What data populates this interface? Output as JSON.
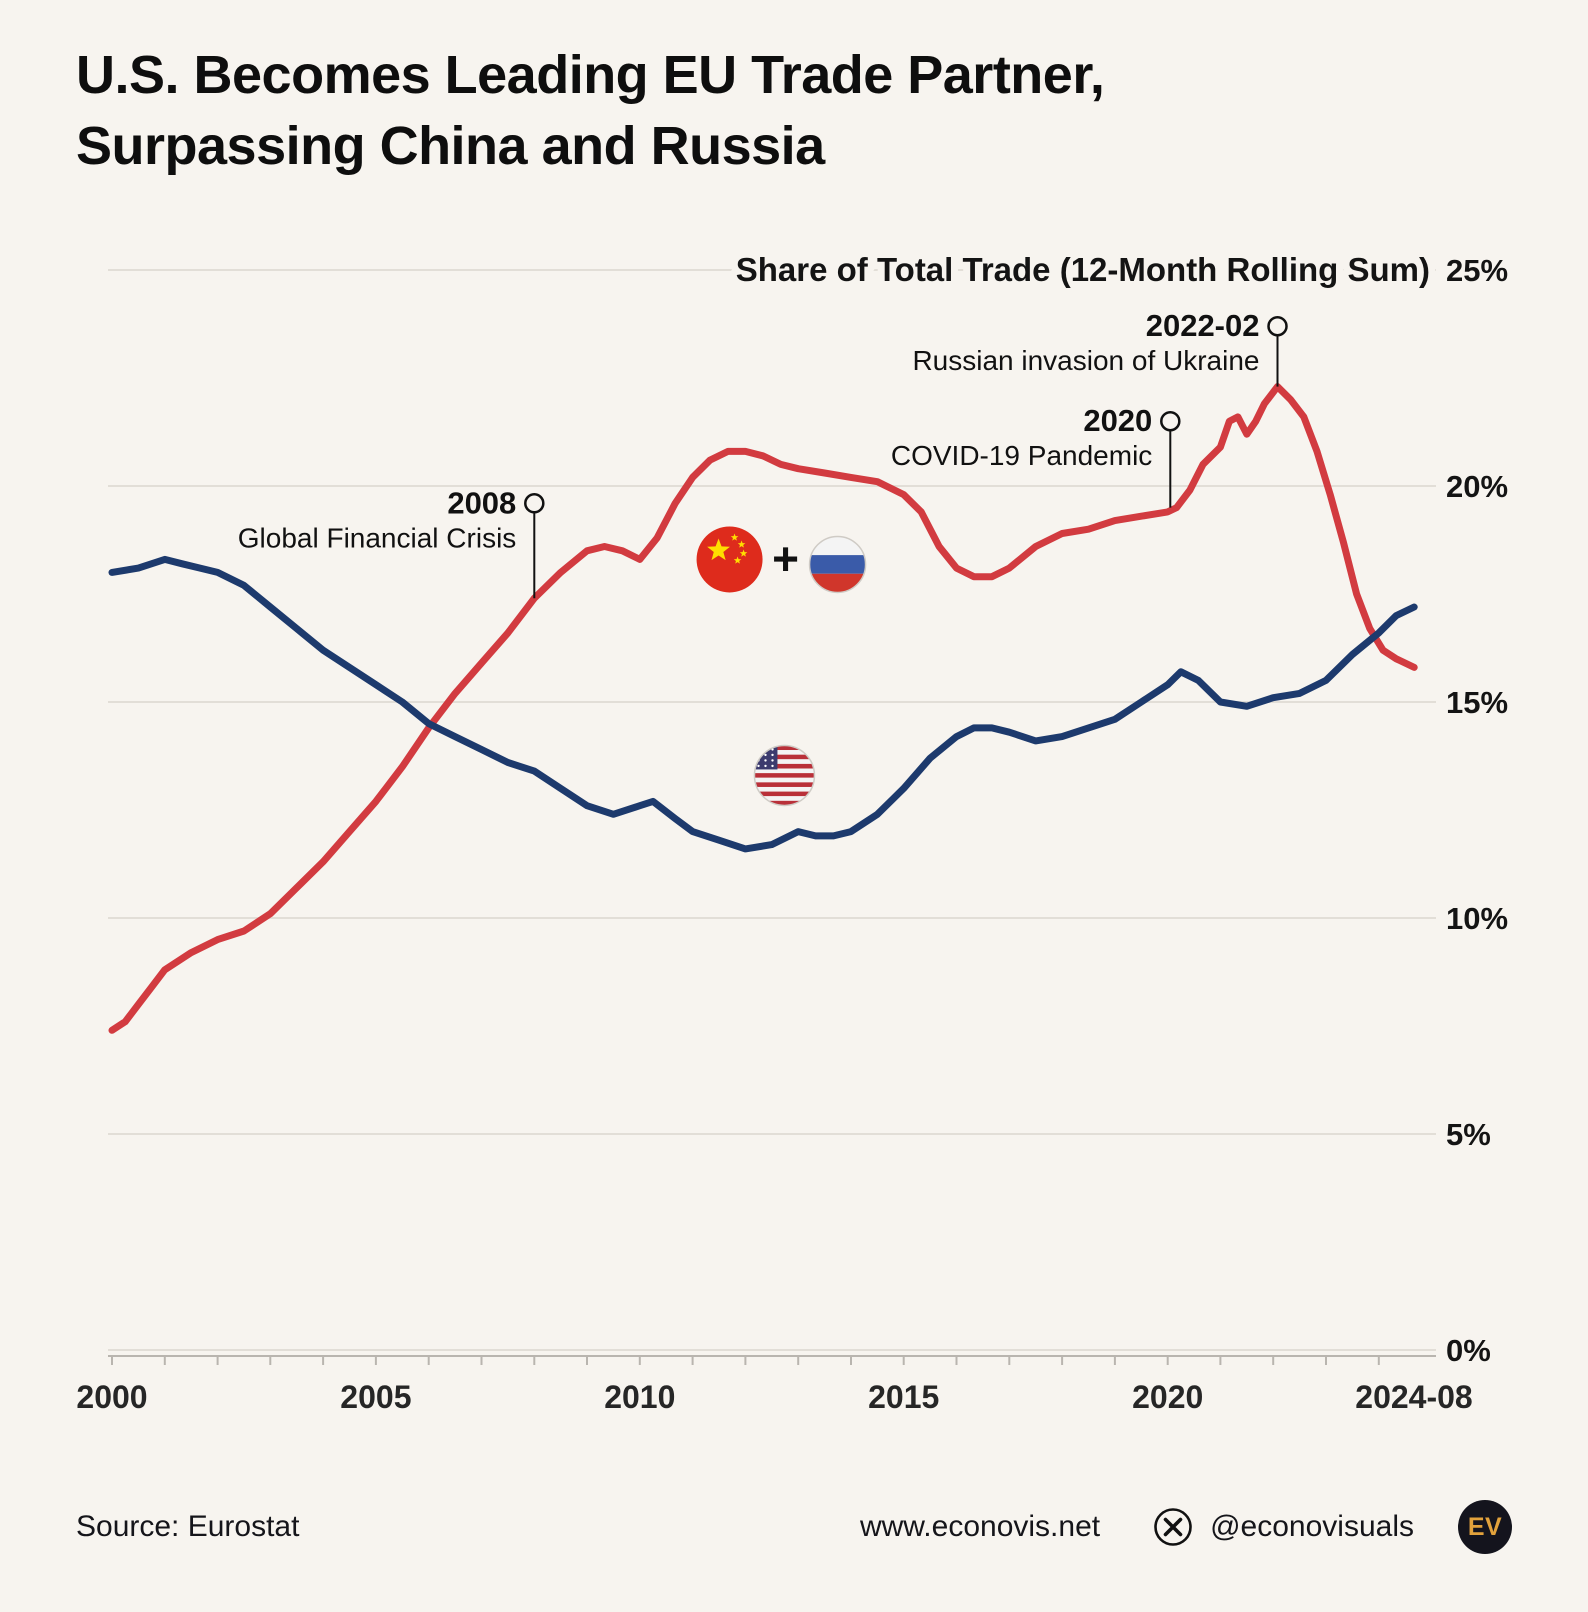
{
  "header": {
    "title_line1": "U.S. Becomes Leading EU Trade Partner,",
    "title_line2": "Surpassing China and Russia"
  },
  "colors": {
    "background": "#f7f4ef",
    "grid": "#e2ded7",
    "axis": "#b9b5af",
    "text": "#141414",
    "red": "#d23b40",
    "navy": "#1d3a6d"
  },
  "chart_data": {
    "type": "line",
    "title": "Share of Total Trade (12-Month Rolling Sum)",
    "x_axis": {
      "range": [
        2000,
        2024.667
      ],
      "tick_years": [
        2000,
        2005,
        2010,
        2015,
        2020,
        2024.667
      ],
      "tick_labels": [
        "2000",
        "2005",
        "2010",
        "2015",
        "2020",
        "2024-08"
      ]
    },
    "y_axis": {
      "range": [
        0,
        25
      ],
      "tick_values": [
        0,
        5,
        10,
        15,
        20,
        25
      ],
      "tick_labels": [
        "0%",
        "5%",
        "10%",
        "15%",
        "20%",
        "25%"
      ]
    },
    "series": [
      {
        "id": "china-russia",
        "name": "China + Russia",
        "color": "#d23b40",
        "points": [
          [
            2000.0,
            7.4
          ],
          [
            2000.25,
            7.6
          ],
          [
            2000.5,
            8.0
          ],
          [
            2000.75,
            8.4
          ],
          [
            2001.0,
            8.8
          ],
          [
            2001.25,
            9.0
          ],
          [
            2001.5,
            9.2
          ],
          [
            2002.0,
            9.5
          ],
          [
            2002.5,
            9.7
          ],
          [
            2003.0,
            10.1
          ],
          [
            2003.5,
            10.7
          ],
          [
            2004.0,
            11.3
          ],
          [
            2004.5,
            12.0
          ],
          [
            2005.0,
            12.7
          ],
          [
            2005.5,
            13.5
          ],
          [
            2006.0,
            14.4
          ],
          [
            2006.5,
            15.2
          ],
          [
            2007.0,
            15.9
          ],
          [
            2007.5,
            16.6
          ],
          [
            2008.0,
            17.4
          ],
          [
            2008.5,
            18.0
          ],
          [
            2009.0,
            18.5
          ],
          [
            2009.33,
            18.6
          ],
          [
            2009.67,
            18.5
          ],
          [
            2010.0,
            18.3
          ],
          [
            2010.33,
            18.8
          ],
          [
            2010.67,
            19.6
          ],
          [
            2011.0,
            20.2
          ],
          [
            2011.33,
            20.6
          ],
          [
            2011.67,
            20.8
          ],
          [
            2012.0,
            20.8
          ],
          [
            2012.33,
            20.7
          ],
          [
            2012.67,
            20.5
          ],
          [
            2013.0,
            20.4
          ],
          [
            2013.5,
            20.3
          ],
          [
            2014.0,
            20.2
          ],
          [
            2014.5,
            20.1
          ],
          [
            2015.0,
            19.8
          ],
          [
            2015.33,
            19.4
          ],
          [
            2015.67,
            18.6
          ],
          [
            2016.0,
            18.1
          ],
          [
            2016.33,
            17.9
          ],
          [
            2016.67,
            17.9
          ],
          [
            2017.0,
            18.1
          ],
          [
            2017.5,
            18.6
          ],
          [
            2018.0,
            18.9
          ],
          [
            2018.5,
            19.0
          ],
          [
            2019.0,
            19.2
          ],
          [
            2019.5,
            19.3
          ],
          [
            2020.0,
            19.4
          ],
          [
            2020.17,
            19.5
          ],
          [
            2020.42,
            19.9
          ],
          [
            2020.67,
            20.5
          ],
          [
            2021.0,
            20.9
          ],
          [
            2021.17,
            21.5
          ],
          [
            2021.33,
            21.6
          ],
          [
            2021.5,
            21.2
          ],
          [
            2021.67,
            21.5
          ],
          [
            2021.83,
            21.9
          ],
          [
            2022.08,
            22.3
          ],
          [
            2022.33,
            22.0
          ],
          [
            2022.58,
            21.6
          ],
          [
            2022.83,
            20.8
          ],
          [
            2023.08,
            19.8
          ],
          [
            2023.33,
            18.7
          ],
          [
            2023.58,
            17.5
          ],
          [
            2023.83,
            16.7
          ],
          [
            2024.08,
            16.2
          ],
          [
            2024.33,
            16.0
          ],
          [
            2024.67,
            15.8
          ]
        ]
      },
      {
        "id": "united-states",
        "name": "United States",
        "color": "#1d3a6d",
        "points": [
          [
            2000.0,
            18.0
          ],
          [
            2000.5,
            18.1
          ],
          [
            2001.0,
            18.3
          ],
          [
            2001.33,
            18.2
          ],
          [
            2001.67,
            18.1
          ],
          [
            2002.0,
            18.0
          ],
          [
            2002.5,
            17.7
          ],
          [
            2003.0,
            17.2
          ],
          [
            2003.5,
            16.7
          ],
          [
            2004.0,
            16.2
          ],
          [
            2004.5,
            15.8
          ],
          [
            2005.0,
            15.4
          ],
          [
            2005.5,
            15.0
          ],
          [
            2006.0,
            14.5
          ],
          [
            2006.5,
            14.2
          ],
          [
            2007.0,
            13.9
          ],
          [
            2007.5,
            13.6
          ],
          [
            2008.0,
            13.4
          ],
          [
            2008.5,
            13.0
          ],
          [
            2009.0,
            12.6
          ],
          [
            2009.5,
            12.4
          ],
          [
            2010.0,
            12.6
          ],
          [
            2010.25,
            12.7
          ],
          [
            2010.67,
            12.3
          ],
          [
            2011.0,
            12.0
          ],
          [
            2011.5,
            11.8
          ],
          [
            2012.0,
            11.6
          ],
          [
            2012.5,
            11.7
          ],
          [
            2013.0,
            12.0
          ],
          [
            2013.33,
            11.9
          ],
          [
            2013.67,
            11.9
          ],
          [
            2014.0,
            12.0
          ],
          [
            2014.5,
            12.4
          ],
          [
            2015.0,
            13.0
          ],
          [
            2015.5,
            13.7
          ],
          [
            2016.0,
            14.2
          ],
          [
            2016.33,
            14.4
          ],
          [
            2016.67,
            14.4
          ],
          [
            2017.0,
            14.3
          ],
          [
            2017.5,
            14.1
          ],
          [
            2018.0,
            14.2
          ],
          [
            2018.5,
            14.4
          ],
          [
            2019.0,
            14.6
          ],
          [
            2019.5,
            15.0
          ],
          [
            2020.0,
            15.4
          ],
          [
            2020.25,
            15.7
          ],
          [
            2020.58,
            15.5
          ],
          [
            2021.0,
            15.0
          ],
          [
            2021.5,
            14.9
          ],
          [
            2022.0,
            15.1
          ],
          [
            2022.5,
            15.2
          ],
          [
            2023.0,
            15.5
          ],
          [
            2023.5,
            16.1
          ],
          [
            2024.0,
            16.6
          ],
          [
            2024.33,
            17.0
          ],
          [
            2024.67,
            17.2
          ]
        ]
      }
    ],
    "annotations": [
      {
        "id": "gfc-2008",
        "label": "2008",
        "text": "Global Financial Crisis",
        "x": 2008.0,
        "point_value": 17.4,
        "callout_value": 19.6
      },
      {
        "id": "covid-2020",
        "label": "2020",
        "text": "COVID-19 Pandemic",
        "x": 2020.05,
        "point_value": 19.5,
        "callout_value": 21.5
      },
      {
        "id": "ukraine-2022",
        "label": "2022-02",
        "text": "Russian invasion of Ukraine",
        "x": 2022.08,
        "point_value": 22.3,
        "callout_value": 23.7
      }
    ],
    "markers": {
      "flags_combo": {
        "x": 2011.7,
        "y": 18.3,
        "plus": "+"
      },
      "us_flag": {
        "x": 2012.74,
        "y": 13.3
      }
    }
  },
  "footer": {
    "source": "Source: Eurostat",
    "website": "www.econovis.net",
    "social_handle": "@econovisuals",
    "logo_text": "EV"
  }
}
